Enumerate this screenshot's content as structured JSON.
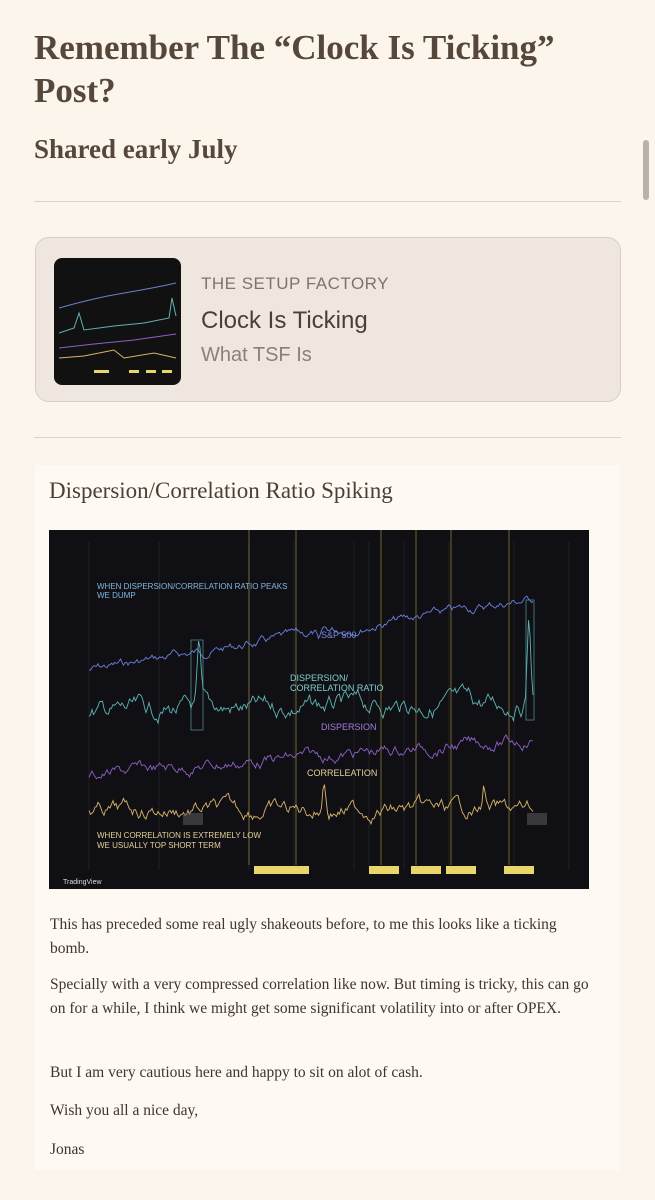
{
  "header": {
    "title": "Remember The “Clock Is Ticking” Post?",
    "subtitle": "Shared early July"
  },
  "card": {
    "publication": "THE SETUP FACTORY",
    "title": "Clock Is Ticking",
    "subtitle": "What TSF Is"
  },
  "section": {
    "heading": "Dispersion/Correlation Ratio Spiking",
    "chart_image": {
      "annotation_top": [
        "WHEN DISPERSION/CORRELATION RATIO PEAKS",
        "WE DUMP"
      ],
      "sp500": "S&P 500",
      "ratio": [
        "DISPERSION/",
        "CORRELATION RATIO"
      ],
      "dispersion": "DISPERSION",
      "correlation": "CORRELEATION",
      "annotation_bottom": [
        "WHEN CORRELATION IS EXTREMELY LOW",
        "WE USUALLY TOP SHORT TERM"
      ],
      "brand": "TradingView"
    },
    "paragraphs": [
      "This has preceded some real ugly shakeouts before, to me this looks like a ticking bomb.",
      "Specially with a very compressed correlation like now. But timing is tricky, this can go on for a while, I think we might get some significant volatility into or after OPEX.",
      "But I am very cautious here and happy to sit on alot of cash.",
      "Wish you all a nice day,",
      "Jonas"
    ]
  }
}
